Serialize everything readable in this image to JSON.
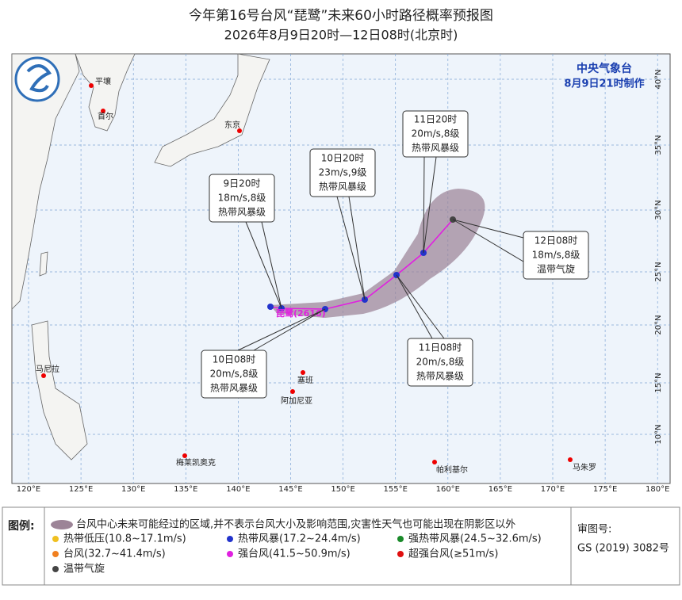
{
  "header": {
    "title": "今年第16号台风“琵鹭”未来60小时路径概率预报图",
    "subtitle": "2026年8月9日20时—12日08时(北京时)"
  },
  "agency": {
    "name": "中央气象台",
    "issued": "8月9日21时制作"
  },
  "map": {
    "lon_labels": [
      "120°E",
      "125°E",
      "130°E",
      "135°E",
      "140°E",
      "145°E",
      "150°E",
      "155°E",
      "160°E",
      "165°E",
      "170°E",
      "175°E",
      "180°E"
    ],
    "lat_labels": [
      "40°N",
      "35°N",
      "30°N",
      "25°N",
      "20°N",
      "15°N",
      "10°N"
    ],
    "cities": [
      "平壤",
      "首尔",
      "东京",
      "马尼拉",
      "塞班",
      "阿加尼亚",
      "梅莱凯奥克",
      "帕利基尔",
      "马朱罗"
    ],
    "storm_label": "琵鹭(2616)",
    "callouts": [
      {
        "time": "9日20时",
        "wind": "18m/s,8级",
        "level": "热带风暴级"
      },
      {
        "time": "10日08时",
        "wind": "20m/s,8级",
        "level": "热带风暴级"
      },
      {
        "time": "10日20时",
        "wind": "23m/s,9级",
        "level": "热带风暴级"
      },
      {
        "time": "11日08时",
        "wind": "20m/s,8级",
        "level": "热带风暴级"
      },
      {
        "time": "11日20时",
        "wind": "20m/s,8级",
        "level": "热带风暴级"
      },
      {
        "time": "12日08时",
        "wind": "18m/s,8级",
        "level": "温带气旋"
      }
    ]
  },
  "legend": {
    "title": "图例:",
    "cone": "台风中心未来可能经过的区域,并不表示台风大小及影响范围,灾害性天气也可能出现在阴影区以外",
    "items": [
      "热带低压(10.8~17.1m/s)",
      "热带风暴(17.2~24.4m/s)",
      "强热带风暴(24.5~32.6m/s)",
      "台风(32.7~41.4m/s)",
      "强台风(41.5~50.9m/s)",
      "超强台风(≥51m/s)",
      "温带气旋"
    ]
  },
  "review": {
    "label": "审图号:",
    "code": "GS (2019) 3082号"
  }
}
